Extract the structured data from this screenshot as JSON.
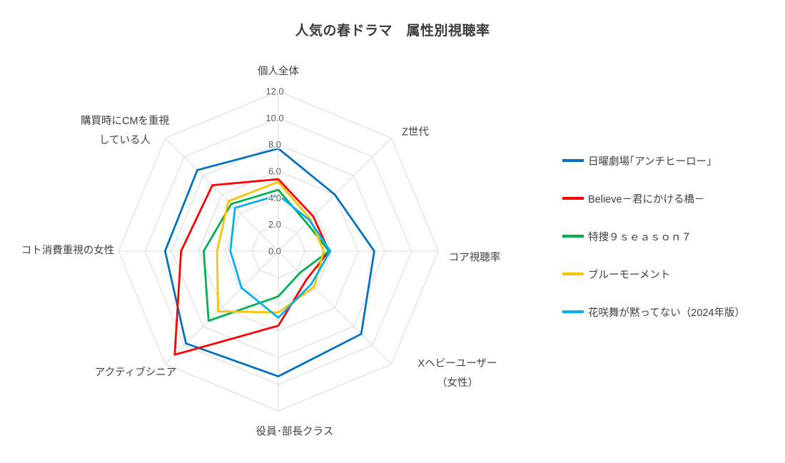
{
  "chart_data": {
    "type": "radar",
    "title": "人気の春ドラマ　属性別視聴率",
    "categories": [
      "個人全体",
      "Z世代",
      "コア視聴率",
      "Xヘビーユーザー\n（女性）",
      "役員･部長クラス",
      "アクティブシニア",
      "コト消費重視の女性",
      "購買時にCMを重視\nしている人"
    ],
    "axis": {
      "min": 0,
      "max": 12,
      "step": 2,
      "tick_labels": [
        "0.0",
        "2.0",
        "4.0",
        "6.0",
        "8.0",
        "10.0",
        "12.0"
      ]
    },
    "grid": true,
    "grid_color": "#d9d9d9",
    "legend_position": "right",
    "series": [
      {
        "name": "日曜劇場｢アンチヒーロー｣",
        "color": "#0070C0",
        "values": [
          7.7,
          6.0,
          7.2,
          8.8,
          9.4,
          9.8,
          8.5,
          8.6
        ]
      },
      {
        "name": "Believe－君にかける橋－",
        "color": "#FF0000",
        "values": [
          5.4,
          3.7,
          3.8,
          3.0,
          5.6,
          11.0,
          7.3,
          7.0
        ]
      },
      {
        "name": "特捜９ｓｅａｓｏｎ７",
        "color": "#00B050",
        "values": [
          4.6,
          3.0,
          3.8,
          2.3,
          3.4,
          7.4,
          5.6,
          5.0
        ]
      },
      {
        "name": "ブルーモーメント",
        "color": "#FFC000",
        "values": [
          5.2,
          3.4,
          3.4,
          3.8,
          4.6,
          6.4,
          4.6,
          5.3
        ]
      },
      {
        "name": "花咲舞が黙ってない（2024年版）",
        "color": "#00B0F0",
        "values": [
          4.2,
          3.3,
          3.9,
          3.5,
          5.0,
          3.9,
          3.6,
          4.6
        ]
      }
    ]
  }
}
